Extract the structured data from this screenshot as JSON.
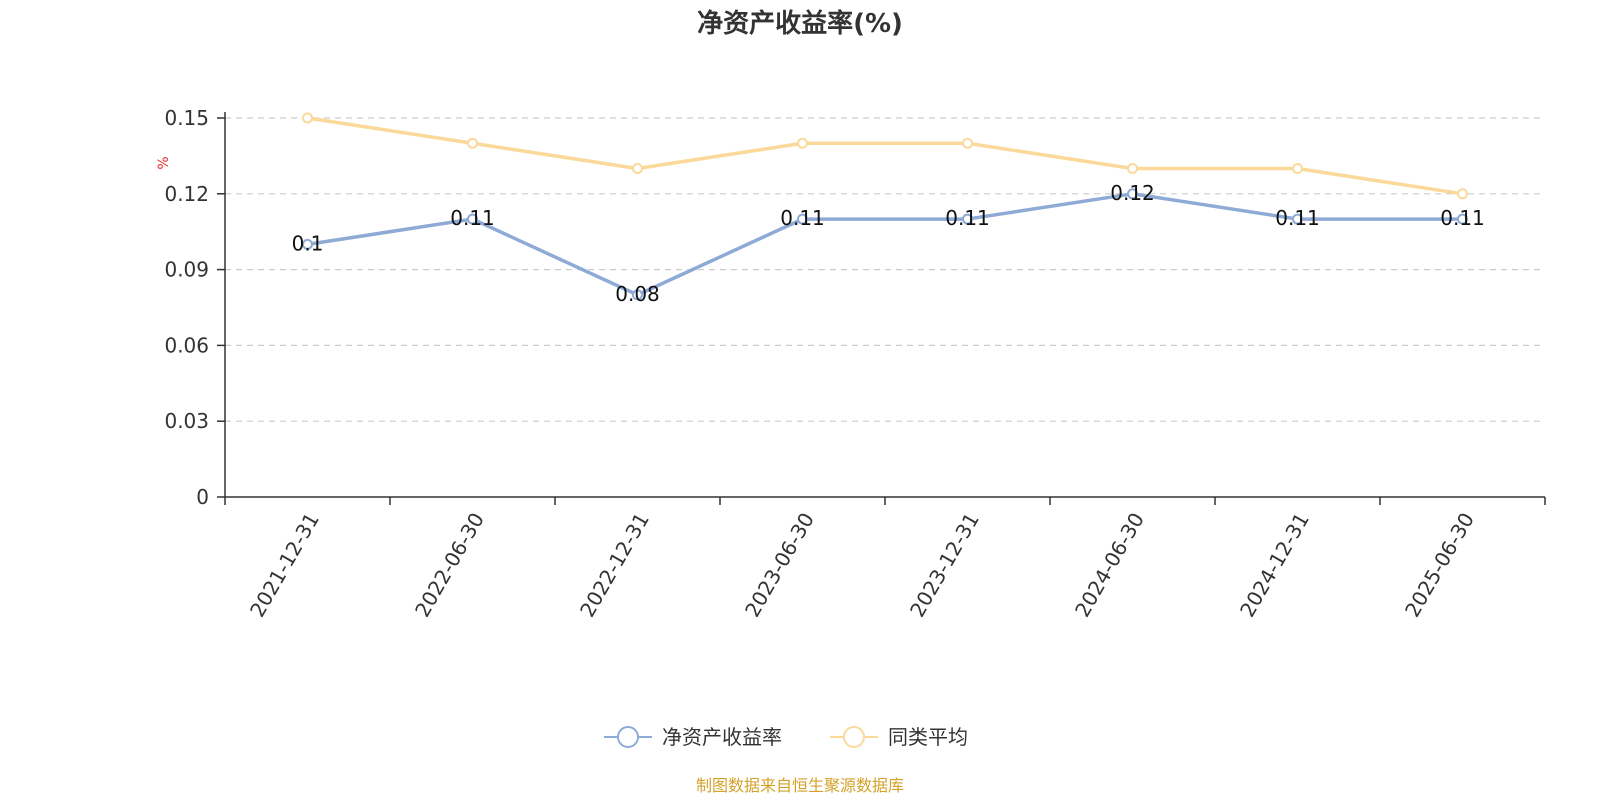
{
  "chart_data": {
    "type": "line",
    "title": "净资产收益率(%)",
    "ylabel": "%",
    "ylim": [
      0,
      0.15
    ],
    "yticks": [
      "0",
      "0.03",
      "0.06",
      "0.09",
      "0.12",
      "0.15"
    ],
    "grid": true,
    "categories": [
      "2021-12-31",
      "2022-06-30",
      "2022-12-31",
      "2023-06-30",
      "2023-12-31",
      "2024-06-30",
      "2024-12-31",
      "2025-06-30"
    ],
    "series": [
      {
        "name": "净资产收益率",
        "color": "#8eaad6",
        "values": [
          0.1,
          0.11,
          0.08,
          0.11,
          0.11,
          0.12,
          0.11,
          0.11
        ],
        "labels": [
          "0.1",
          "0.11",
          "0.08",
          "0.11",
          "0.11",
          "0.12",
          "0.11",
          "0.11"
        ]
      },
      {
        "name": "同类平均",
        "color": "#fbd99a",
        "values": [
          0.15,
          0.14,
          0.13,
          0.14,
          0.14,
          0.13,
          0.13,
          0.12
        ]
      }
    ],
    "legend_position": "bottom",
    "source": "制图数据来自恒生聚源数据库",
    "unit_color": "#e03030",
    "source_color": "#d4a22a"
  }
}
